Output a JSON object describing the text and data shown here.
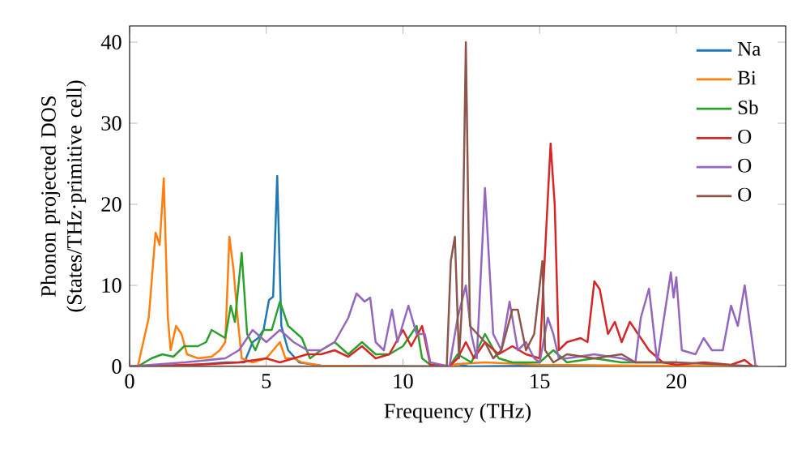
{
  "chart_data": {
    "type": "line",
    "xlabel": "Frequency (THz)",
    "ylabel": "Phonon projected DOS (States/THz·primitive cell)",
    "xlim": [
      0,
      24
    ],
    "ylim": [
      0,
      42
    ],
    "xticks": [
      0,
      5,
      10,
      15,
      20
    ],
    "yticks": [
      0,
      10,
      20,
      30,
      40
    ],
    "legend": "top right",
    "grid": false,
    "series": [
      {
        "name": "Na",
        "color": "#1f77b4",
        "x": [
          0,
          2,
          3.5,
          4.2,
          4.5,
          4.7,
          4.9,
          5.1,
          5.25,
          5.4,
          5.55,
          5.8,
          6.2,
          7,
          11.7,
          12,
          12.4,
          15,
          23
        ],
        "values": [
          0,
          0.1,
          0.5,
          0.5,
          3,
          3.5,
          4.5,
          8.2,
          8.6,
          23.5,
          5,
          2,
          0.5,
          0.1,
          0,
          0.3,
          0,
          0.1,
          0
        ]
      },
      {
        "name": "Bi",
        "color": "#ff7f0e",
        "x": [
          0,
          0.3,
          0.7,
          0.95,
          1.1,
          1.25,
          1.4,
          1.5,
          1.7,
          1.9,
          2.1,
          2.5,
          3,
          3.3,
          3.5,
          3.65,
          3.8,
          3.95,
          4.1,
          4.5,
          5,
          5.5,
          5.7,
          6,
          6.3,
          7,
          10,
          11.7,
          12,
          13,
          15,
          23
        ],
        "values": [
          0,
          0,
          6,
          16.5,
          15,
          23.2,
          6,
          2,
          5,
          4,
          1.5,
          1,
          1.2,
          2,
          3,
          16,
          12,
          6,
          1,
          0.5,
          1,
          3,
          1,
          1,
          0.5,
          0.1,
          0,
          0,
          0.3,
          0.5,
          0.2,
          0
        ]
      },
      {
        "name": "Sb",
        "color": "#2ca02c",
        "x": [
          0,
          0.3,
          0.8,
          1.2,
          1.6,
          2,
          2.5,
          2.8,
          3,
          3.5,
          3.7,
          3.85,
          4.1,
          4.3,
          4.6,
          4.9,
          5.2,
          5.5,
          5.8,
          6.3,
          6.6,
          7,
          7.5,
          8,
          8.5,
          9,
          9.5,
          10,
          10.5,
          10.7,
          11,
          11.7,
          12,
          12.5,
          13,
          13.5,
          14,
          15,
          15.5,
          16,
          17,
          18,
          20
        ],
        "values": [
          0,
          0,
          1,
          1.5,
          1.2,
          2.5,
          2.5,
          3,
          4.5,
          3.5,
          7.5,
          5.5,
          14,
          4,
          2,
          4.5,
          4.5,
          8,
          5,
          3.5,
          1,
          2,
          3,
          1.5,
          3,
          1.5,
          1.5,
          2.5,
          5,
          1,
          0.2,
          0,
          1.5,
          0.5,
          4,
          1,
          0.5,
          0.5,
          2,
          0.5,
          1,
          0.5,
          0.5
        ]
      },
      {
        "name": "O",
        "color": "#d62728",
        "x": [
          0,
          3,
          4,
          5,
          5.5,
          6.5,
          7,
          7.5,
          8,
          8.5,
          9,
          9.5,
          10,
          10.3,
          10.7,
          11,
          11.7,
          12,
          12.3,
          12.6,
          13,
          13.5,
          14,
          14.5,
          15,
          15.4,
          15.55,
          15.7,
          16,
          16.5,
          16.75,
          17,
          17.2,
          17.5,
          17.75,
          18,
          18.3,
          18.6,
          19,
          19.5,
          20,
          21,
          22,
          22.5,
          22.8
        ],
        "values": [
          0,
          0.3,
          0.5,
          1,
          0.5,
          1.5,
          1.5,
          2,
          1.2,
          2.5,
          1,
          1.5,
          4.5,
          2.5,
          5,
          0.2,
          0,
          1,
          3,
          1,
          3,
          1.5,
          2.5,
          1.5,
          1,
          27.5,
          20,
          2,
          3,
          3.5,
          3,
          10.5,
          9.5,
          4,
          5.5,
          3,
          5.5,
          4,
          2,
          0.5,
          0.2,
          0.5,
          0.2,
          0.8,
          0
        ]
      },
      {
        "name": "O",
        "color": "#9467bd",
        "x": [
          0,
          2,
          3.5,
          4,
          4.5,
          5,
          5.5,
          6,
          6.5,
          7,
          7.5,
          8,
          8.3,
          8.6,
          8.8,
          9,
          9.3,
          9.6,
          9.8,
          10.2,
          10.5,
          10.8,
          11,
          11.7,
          12,
          12.3,
          12.5,
          12.7,
          13,
          13.3,
          13.6,
          13.9,
          14.2,
          14.5,
          14.8,
          15,
          15.3,
          15.5,
          15.7,
          16,
          17,
          18,
          18.5,
          18.7,
          19,
          19.3,
          19.8,
          19.9,
          20,
          20.2,
          20.7,
          21,
          21.3,
          21.7,
          22,
          22.25,
          22.5,
          22.9
        ],
        "values": [
          0,
          0.5,
          1,
          2,
          4.5,
          3,
          4.5,
          3,
          2,
          2,
          3,
          6,
          9,
          8,
          8.5,
          3,
          2,
          7,
          3,
          7.5,
          4,
          4,
          0.5,
          0,
          6,
          10,
          4,
          1,
          22,
          4,
          2,
          8,
          2,
          3,
          1,
          0.5,
          6,
          4,
          1,
          1,
          1.5,
          1,
          0.5,
          6,
          9.6,
          0.5,
          11.6,
          8.5,
          11,
          2,
          1.5,
          3.5,
          2,
          2,
          7.5,
          5,
          10,
          0
        ]
      },
      {
        "name": "O",
        "color": "#8c564b",
        "x": [
          0,
          11.6,
          11.75,
          11.9,
          12.05,
          12.15,
          12.3,
          12.45,
          13,
          13.3,
          13.6,
          14,
          14.2,
          14.5,
          14.8,
          15.1,
          15.2,
          15.5,
          16,
          17,
          18,
          18.5,
          20,
          23
        ],
        "values": [
          0,
          0,
          13,
          16,
          1,
          7,
          40,
          5,
          3,
          1,
          2,
          7,
          7,
          2,
          4,
          13,
          2,
          0.5,
          1.5,
          1,
          1.5,
          0.5,
          0.5,
          0
        ]
      }
    ]
  }
}
